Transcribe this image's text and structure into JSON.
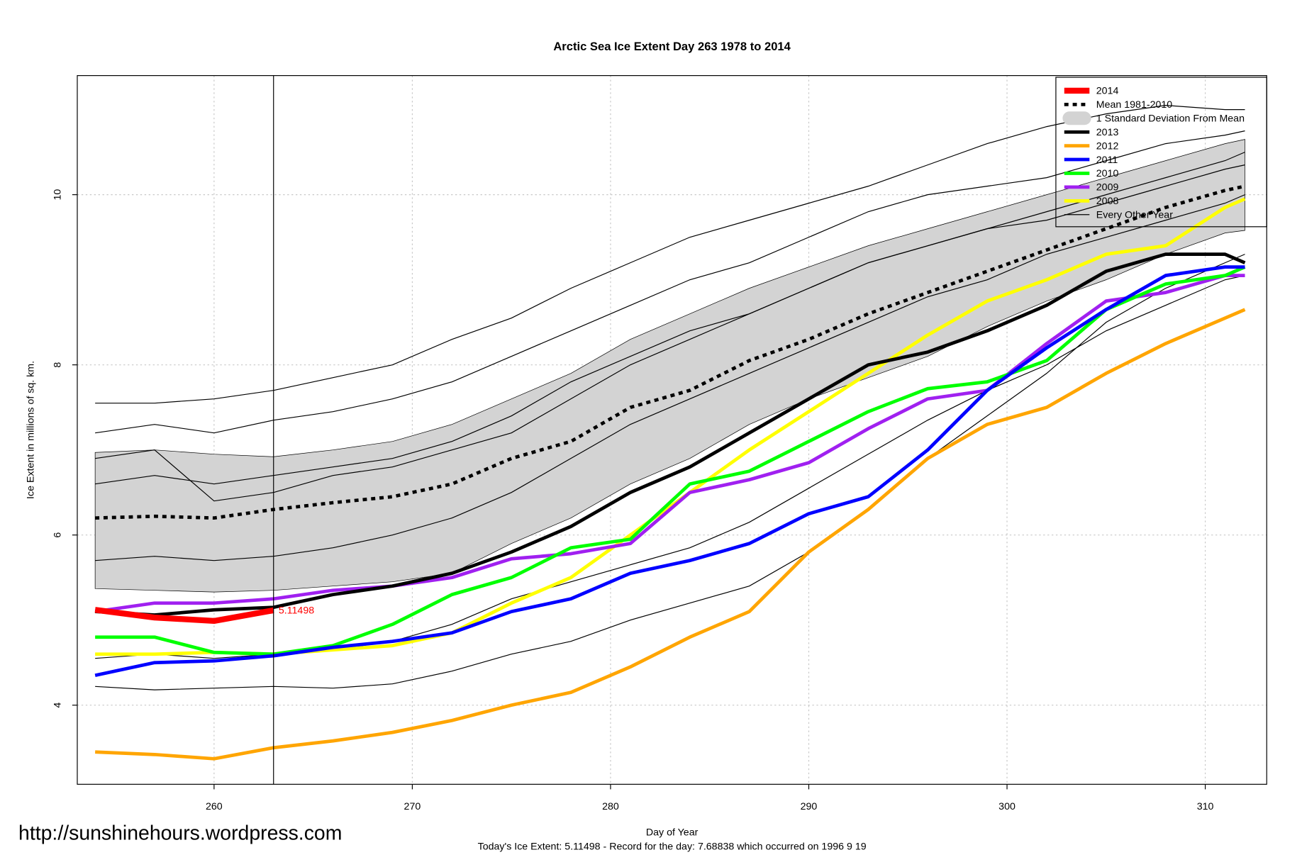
{
  "chart_data": {
    "type": "line",
    "title": "Arctic Sea Ice Extent Day 263 1978 to 2014",
    "x_label": "Day of Year",
    "y_label": "Ice Extent in millions of sq. km.",
    "footer": "Today's Ice Extent: 5.11498  - Record for the day: 7.68838 which occurred on 1996 9 19",
    "watermark": "http://sunshinehours.wordpress.com",
    "current_day": 263,
    "x": [
      254,
      257,
      260,
      263,
      266,
      269,
      272,
      275,
      278,
      281,
      284,
      287,
      290,
      293,
      296,
      299,
      302,
      305,
      308,
      311,
      312
    ],
    "xlim": [
      253.1,
      313.1
    ],
    "ylim": [
      3.07,
      11.4
    ],
    "xticks": [
      260,
      270,
      280,
      290,
      300,
      310
    ],
    "yticks": [
      4,
      6,
      8,
      10
    ],
    "grid": true,
    "legend": "top-right",
    "series": [
      {
        "name": "2014",
        "color": "#ff0000",
        "linewidth": 7,
        "values": [
          5.12,
          5.03,
          4.99,
          5.11498,
          null,
          null,
          null,
          null,
          null,
          null,
          null,
          null,
          null,
          null,
          null,
          null,
          null,
          null,
          null,
          null,
          null
        ]
      },
      {
        "name": "Mean 1981-2010",
        "color": "#000000",
        "linewidth": 4,
        "dash": true,
        "values": [
          6.2,
          6.22,
          6.2,
          6.3,
          6.38,
          6.45,
          6.6,
          6.9,
          7.1,
          7.5,
          7.7,
          8.05,
          8.3,
          8.6,
          8.85,
          9.1,
          9.35,
          9.6,
          9.85,
          10.05,
          10.1
        ]
      },
      {
        "name": "2013",
        "color": "#000000",
        "linewidth": 4,
        "values": [
          5.1,
          5.06,
          5.12,
          5.15,
          5.3,
          5.4,
          5.55,
          5.8,
          6.1,
          6.5,
          6.8,
          7.2,
          7.6,
          8.0,
          8.15,
          8.4,
          8.7,
          9.1,
          9.3,
          9.3,
          9.2
        ]
      },
      {
        "name": "2012",
        "color": "#ffa500",
        "linewidth": 4,
        "values": [
          3.45,
          3.42,
          3.37,
          3.5,
          3.58,
          3.68,
          3.82,
          4.0,
          4.15,
          4.45,
          4.8,
          5.1,
          5.8,
          6.3,
          6.9,
          7.3,
          7.5,
          7.9,
          8.25,
          8.55,
          8.65
        ]
      },
      {
        "name": "2011",
        "color": "#0000ff",
        "linewidth": 4,
        "values": [
          4.35,
          4.5,
          4.52,
          4.58,
          4.68,
          4.75,
          4.85,
          5.1,
          5.25,
          5.55,
          5.7,
          5.9,
          6.25,
          6.45,
          7.0,
          7.7,
          8.2,
          8.65,
          9.05,
          9.15,
          9.15
        ]
      },
      {
        "name": "2010",
        "color": "#00ff00",
        "linewidth": 4,
        "values": [
          4.8,
          4.8,
          4.62,
          4.6,
          4.7,
          4.95,
          5.3,
          5.5,
          5.85,
          5.95,
          6.6,
          6.75,
          7.1,
          7.45,
          7.72,
          7.8,
          8.05,
          8.65,
          8.95,
          9.05,
          9.15
        ]
      },
      {
        "name": "2009",
        "color": "#a020f0",
        "linewidth": 4,
        "values": [
          5.1,
          5.2,
          5.2,
          5.25,
          5.35,
          5.4,
          5.5,
          5.72,
          5.78,
          5.9,
          6.5,
          6.65,
          6.85,
          7.25,
          7.6,
          7.7,
          8.25,
          8.75,
          8.85,
          9.05,
          9.05
        ]
      },
      {
        "name": "2008",
        "color": "#ffff00",
        "linewidth": 4,
        "values": [
          4.6,
          4.6,
          4.62,
          4.6,
          4.65,
          4.7,
          4.85,
          5.2,
          5.5,
          6.0,
          6.5,
          7.0,
          7.45,
          7.9,
          8.35,
          8.75,
          9.0,
          9.3,
          9.4,
          9.85,
          9.95
        ]
      }
    ],
    "band": {
      "name": "1 Standard Deviation From Mean",
      "color": "#d3d3d3",
      "upper": [
        6.97,
        7.0,
        6.95,
        6.92,
        7.0,
        7.1,
        7.3,
        7.6,
        7.9,
        8.3,
        8.6,
        8.9,
        9.15,
        9.4,
        9.6,
        9.8,
        10.0,
        10.2,
        10.4,
        10.6,
        10.65
      ],
      "lower": [
        5.37,
        5.35,
        5.33,
        5.35,
        5.4,
        5.45,
        5.55,
        5.9,
        6.2,
        6.6,
        6.9,
        7.3,
        7.6,
        7.85,
        8.1,
        8.45,
        8.75,
        9.0,
        9.3,
        9.55,
        9.58
      ]
    },
    "other_years": {
      "name": "Every Other Year",
      "color": "#000000",
      "linewidth": 1,
      "lines": [
        [
          4.22,
          4.18,
          4.2,
          4.22,
          4.2,
          4.25,
          4.4,
          4.6,
          4.75,
          5.0,
          5.2,
          5.4,
          5.8,
          6.3,
          6.9,
          7.4,
          7.9,
          8.5,
          8.9,
          9.2,
          9.3
        ],
        [
          7.55,
          7.55,
          7.6,
          7.7,
          7.85,
          8.0,
          8.3,
          8.55,
          8.9,
          9.2,
          9.5,
          9.7,
          9.9,
          10.1,
          10.35,
          10.6,
          10.8,
          10.95,
          11.05,
          11.0,
          11.0
        ],
        [
          7.2,
          7.3,
          7.2,
          7.35,
          7.45,
          7.6,
          7.8,
          8.1,
          8.4,
          8.7,
          9.0,
          9.2,
          9.5,
          9.8,
          10.0,
          10.1,
          10.2,
          10.4,
          10.6,
          10.7,
          10.75
        ],
        [
          6.6,
          6.7,
          6.6,
          6.7,
          6.8,
          6.9,
          7.1,
          7.4,
          7.8,
          8.1,
          8.4,
          8.6,
          8.9,
          9.2,
          9.4,
          9.6,
          9.7,
          9.9,
          10.1,
          10.3,
          10.35
        ],
        [
          5.7,
          5.75,
          5.7,
          5.75,
          5.85,
          6.0,
          6.2,
          6.5,
          6.9,
          7.3,
          7.6,
          7.9,
          8.2,
          8.5,
          8.8,
          9.0,
          9.3,
          9.5,
          9.7,
          9.9,
          10.0
        ],
        [
          4.55,
          4.6,
          4.55,
          4.6,
          4.65,
          4.75,
          4.95,
          5.25,
          5.45,
          5.65,
          5.85,
          6.15,
          6.55,
          6.95,
          7.35,
          7.7,
          8.0,
          8.4,
          8.7,
          9.0,
          9.05
        ],
        [
          6.9,
          7.0,
          6.4,
          6.5,
          6.7,
          6.8,
          7.0,
          7.2,
          7.6,
          8.0,
          8.3,
          8.6,
          8.9,
          9.2,
          9.4,
          9.6,
          9.8,
          10.0,
          10.2,
          10.4,
          10.5
        ]
      ]
    }
  }
}
